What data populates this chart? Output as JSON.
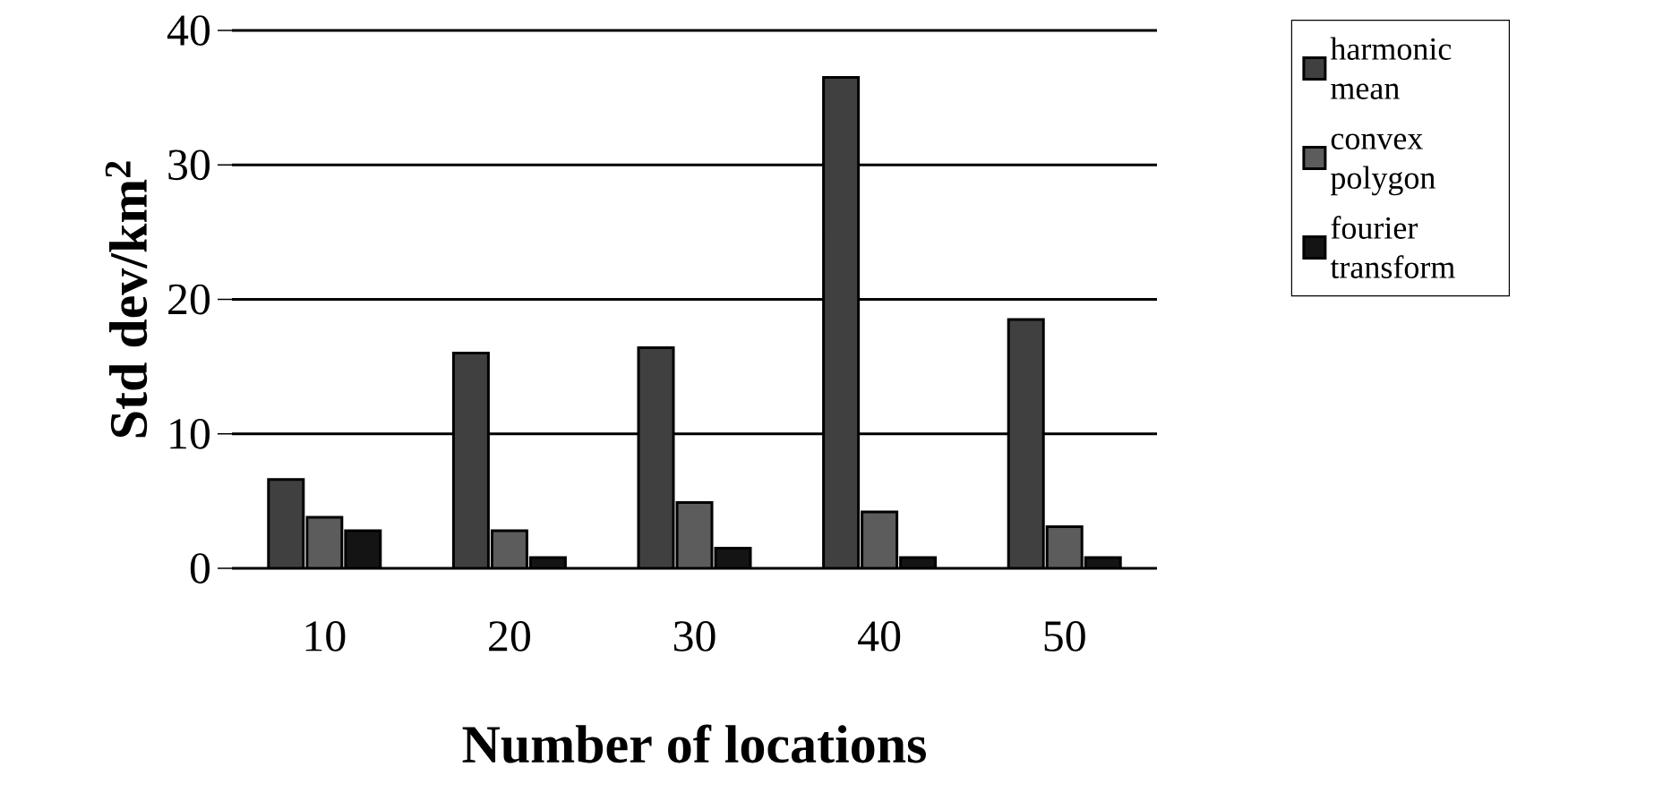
{
  "chart_data": {
    "type": "bar",
    "xlabel": "Number of locations",
    "ylabel": "Std dev/km$^{2}$",
    "categories": [
      "10",
      "20",
      "30",
      "40",
      "50"
    ],
    "series": [
      {
        "name": "harmonic mean",
        "color": "#404040",
        "values": [
          6.6,
          16.0,
          16.4,
          36.5,
          18.5
        ]
      },
      {
        "name": "convex polygon",
        "color": "#5c5c5c",
        "values": [
          3.8,
          2.8,
          4.9,
          4.2,
          3.1
        ]
      },
      {
        "name": "fourier transform",
        "color": "#141414",
        "values": [
          2.8,
          0.8,
          1.5,
          0.8,
          0.8
        ]
      }
    ],
    "ylim": [
      0,
      40
    ],
    "yticks": [
      0,
      10,
      20,
      30,
      40
    ],
    "grid": "y",
    "legend": "top right"
  }
}
